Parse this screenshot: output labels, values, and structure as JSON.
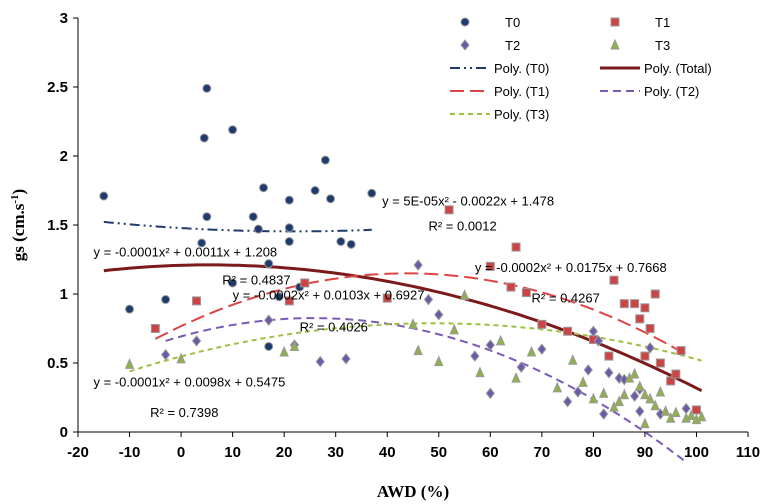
{
  "chart_data": {
    "type": "scatter",
    "xlabel": "AWD (%)",
    "ylabel": "gs (cm.s-1)",
    "ylabel_main": "gs (cm.s",
    "ylabel_sup": "-1",
    "ylabel_end": ")",
    "xlim": [
      -20,
      110
    ],
    "ylim": [
      0,
      3
    ],
    "xticks": [
      -20,
      -10,
      0,
      10,
      20,
      30,
      40,
      50,
      60,
      70,
      80,
      90,
      100,
      110
    ],
    "yticks": [
      0,
      0.5,
      1,
      1.5,
      2,
      2.5,
      3
    ],
    "grid": false,
    "legend_position": "top-right",
    "series": [
      {
        "name": "T0",
        "marker": "circle",
        "color": "#1f3b6e",
        "points": [
          [
            -15,
            1.71
          ],
          [
            -10,
            0.89
          ],
          [
            -3,
            0.96
          ],
          [
            4,
            1.37
          ],
          [
            4.5,
            2.13
          ],
          [
            5,
            2.49
          ],
          [
            5,
            1.56
          ],
          [
            10,
            2.19
          ],
          [
            10,
            1.08
          ],
          [
            14,
            1.56
          ],
          [
            16,
            1.77
          ],
          [
            17,
            1.22
          ],
          [
            17,
            0.62
          ],
          [
            19,
            0.98
          ],
          [
            21,
            1.38
          ],
          [
            21,
            1.68
          ],
          [
            21,
            1.48
          ],
          [
            23,
            1.05
          ],
          [
            26,
            1.75
          ],
          [
            28,
            1.97
          ],
          [
            29,
            1.69
          ],
          [
            31,
            1.38
          ],
          [
            33,
            1.36
          ],
          [
            37,
            1.73
          ],
          [
            15,
            1.47
          ]
        ]
      },
      {
        "name": "T1",
        "marker": "square",
        "color": "#cc4444",
        "points": [
          [
            -5,
            0.75
          ],
          [
            3,
            0.95
          ],
          [
            21,
            0.95
          ],
          [
            24,
            1.08
          ],
          [
            40,
            0.97
          ],
          [
            52,
            1.61
          ],
          [
            60,
            1.2
          ],
          [
            64,
            1.05
          ],
          [
            65,
            1.34
          ],
          [
            67,
            1.01
          ],
          [
            70,
            0.78
          ],
          [
            75,
            0.73
          ],
          [
            80,
            0.67
          ],
          [
            83,
            0.55
          ],
          [
            84,
            1.1
          ],
          [
            86,
            0.93
          ],
          [
            88,
            0.93
          ],
          [
            89,
            0.82
          ],
          [
            90,
            0.55
          ],
          [
            90,
            0.9
          ],
          [
            91,
            0.75
          ],
          [
            92,
            1.0
          ],
          [
            93,
            0.5
          ],
          [
            95,
            0.37
          ],
          [
            96,
            0.42
          ],
          [
            97,
            0.59
          ],
          [
            100,
            0.16
          ]
        ]
      },
      {
        "name": "T2",
        "marker": "diamond",
        "color": "#6b5aa8",
        "points": [
          [
            -3,
            0.56
          ],
          [
            3,
            0.66
          ],
          [
            17,
            0.81
          ],
          [
            22,
            0.63
          ],
          [
            27,
            0.51
          ],
          [
            32,
            0.53
          ],
          [
            46,
            1.21
          ],
          [
            48,
            0.96
          ],
          [
            50,
            0.85
          ],
          [
            57,
            0.55
          ],
          [
            60,
            0.28
          ],
          [
            60,
            0.63
          ],
          [
            66,
            0.47
          ],
          [
            70,
            0.6
          ],
          [
            75,
            0.22
          ],
          [
            77,
            0.29
          ],
          [
            79,
            0.45
          ],
          [
            80,
            0.73
          ],
          [
            81,
            0.66
          ],
          [
            82,
            0.13
          ],
          [
            83,
            0.43
          ],
          [
            85,
            0.39
          ],
          [
            86,
            0.38
          ],
          [
            88,
            0.26
          ],
          [
            89,
            0.15
          ],
          [
            89,
            0.31
          ],
          [
            91,
            0.61
          ],
          [
            93,
            0.13
          ],
          [
            98,
            0.17
          ]
        ]
      },
      {
        "name": "T3",
        "marker": "triangle",
        "color": "#8fb04a",
        "points": [
          [
            -10,
            0.49
          ],
          [
            0,
            0.53
          ],
          [
            20,
            0.58
          ],
          [
            22,
            0.62
          ],
          [
            45,
            0.78
          ],
          [
            46,
            0.59
          ],
          [
            50,
            0.51
          ],
          [
            53,
            0.74
          ],
          [
            55,
            0.99
          ],
          [
            58,
            0.43
          ],
          [
            62,
            0.66
          ],
          [
            65,
            0.39
          ],
          [
            68,
            0.58
          ],
          [
            73,
            0.32
          ],
          [
            76,
            0.52
          ],
          [
            78,
            0.36
          ],
          [
            80,
            0.24
          ],
          [
            82,
            0.28
          ],
          [
            84,
            0.18
          ],
          [
            85,
            0.22
          ],
          [
            86,
            0.27
          ],
          [
            87,
            0.39
          ],
          [
            88,
            0.42
          ],
          [
            89,
            0.33
          ],
          [
            90,
            0.27
          ],
          [
            90,
            0.06
          ],
          [
            91,
            0.24
          ],
          [
            92,
            0.19
          ],
          [
            93,
            0.29
          ],
          [
            94,
            0.15
          ],
          [
            95,
            0.1
          ],
          [
            96,
            0.14
          ],
          [
            98,
            0.1
          ],
          [
            99,
            0.12
          ],
          [
            100,
            0.09
          ],
          [
            101,
            0.11
          ]
        ]
      }
    ],
    "trendlines": [
      {
        "name": "Poly. (T0)",
        "color": "#1f3b6e",
        "dash": "10 4 2 4 2 4",
        "width": 2,
        "a": 5e-05,
        "b": -0.0022,
        "c": 1.478,
        "x_range": [
          -15,
          37
        ]
      },
      {
        "name": "Poly. (Total)",
        "color": "#7b1a1a",
        "dash": "",
        "width": 3,
        "a": -0.0001,
        "b": 0.0011,
        "c": 1.208,
        "x_range": [
          -15,
          101
        ]
      },
      {
        "name": "Poly. (T1)",
        "color": "#dd4444",
        "dash": "14 6",
        "width": 2,
        "a": -0.0002,
        "b": 0.0175,
        "c": 0.7668,
        "x_range": [
          -5,
          97
        ]
      },
      {
        "name": "Poly. (T2)",
        "color": "#7a5ab8",
        "dash": "8 5",
        "width": 2,
        "a": -0.0002,
        "b": 0.0103,
        "c": 0.6927,
        "x_range": [
          -3,
          98
        ]
      },
      {
        "name": "Poly. (T3)",
        "color": "#9cc040",
        "dash": "5 4",
        "width": 2,
        "a": -0.0001,
        "b": 0.0098,
        "c": 0.5475,
        "x_range": [
          -10,
          101
        ]
      }
    ],
    "annotations": [
      {
        "id": "t0-eq",
        "text": "y = 5E-05x² - 0.0022x + 1.478",
        "x": 39,
        "y": 1.64
      },
      {
        "id": "t0-r2",
        "text": "R² = 0.0012",
        "x": 48,
        "y": 1.46
      },
      {
        "id": "total-eq",
        "text": "y = -0.0001x² + 0.0011x + 1.208",
        "x": -17,
        "y": 1.27
      },
      {
        "id": "total-r2",
        "text": "R² = 0.4837",
        "x": 8,
        "y": 1.07
      },
      {
        "id": "t1-eq",
        "text": "y = -0.0002x² + 0.0175x + 0.7668",
        "x": 57,
        "y": 1.16
      },
      {
        "id": "t1-r2",
        "text": "R² = 0.4267",
        "x": 68,
        "y": 0.94
      },
      {
        "id": "t2-eq",
        "text": "y = -0.0002x² + 0.0103x + 0.6927",
        "x": 10,
        "y": 0.96
      },
      {
        "id": "t2-r2",
        "text": "R² = 0.4026",
        "x": 23,
        "y": 0.73
      },
      {
        "id": "t3-eq",
        "text": "y = -0.0001x² + 0.0098x + 0.5475",
        "x": -17,
        "y": 0.33
      },
      {
        "id": "t3-r2",
        "text": "R² = 0.7398",
        "x": -6,
        "y": 0.11
      }
    ],
    "legend": {
      "markers": [
        {
          "label": "T0",
          "series": 0
        },
        {
          "label": "T1",
          "series": 1
        },
        {
          "label": "T2",
          "series": 2
        },
        {
          "label": "T3",
          "series": 3
        }
      ],
      "lines": [
        {
          "label": "Poly. (T0)",
          "trend": 0
        },
        {
          "label": "Poly. (Total)",
          "trend": 1
        },
        {
          "label": "Poly. (T1)",
          "trend": 2
        },
        {
          "label": "Poly. (T2)",
          "trend": 3
        },
        {
          "label": "Poly. (T3)",
          "trend": 4
        }
      ]
    }
  }
}
